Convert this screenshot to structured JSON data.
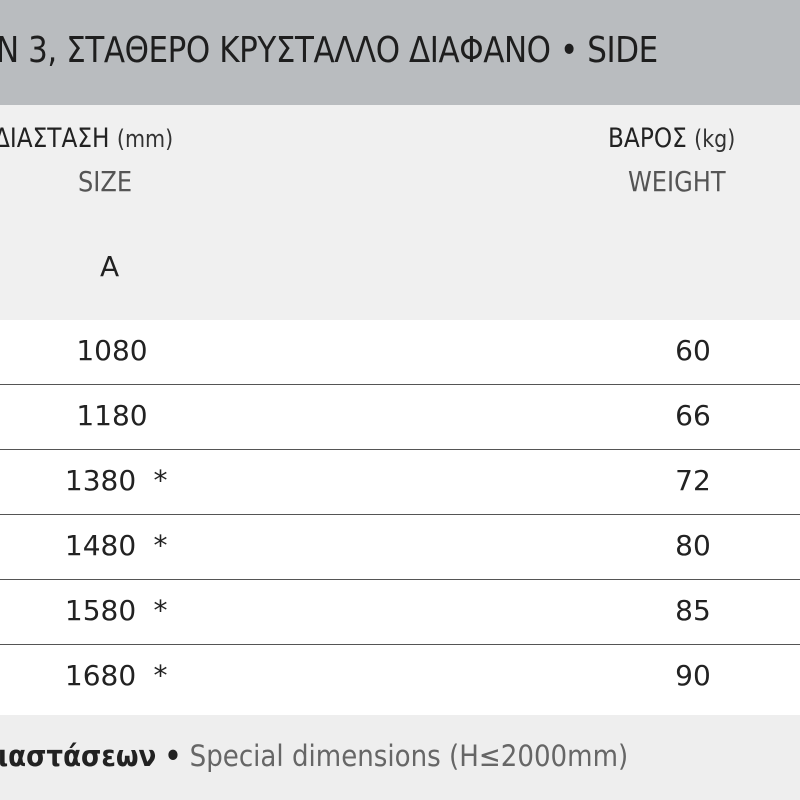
{
  "title": "N 3, ΣΤΑΘΕΡΟ ΚΡΥΣΤΑΛΛΟ ΔΙΑΦΑΝΟ • SIDE",
  "header": {
    "size_gr": "ΔΙΑΣΤΑΣΗ",
    "size_unit": "(mm)",
    "size_en": "SIZE",
    "column_a": "A",
    "weight_gr": "ΒΑΡΟΣ",
    "weight_unit": "(kg)",
    "weight_en": "WEIGHT"
  },
  "rows": [
    {
      "a": "1080",
      "mark": "",
      "weight": "60"
    },
    {
      "a": "1180",
      "mark": "",
      "weight": "66"
    },
    {
      "a": "1380",
      "mark": "*",
      "weight": "72"
    },
    {
      "a": "1480",
      "mark": "*",
      "weight": "80"
    },
    {
      "a": "1580",
      "mark": "*",
      "weight": "85"
    },
    {
      "a": "1680",
      "mark": "*",
      "weight": "90"
    }
  ],
  "footer": {
    "greek": "ιαστάσεων",
    "separator": "•",
    "english": "Special dimensions (H≤2000mm)"
  }
}
